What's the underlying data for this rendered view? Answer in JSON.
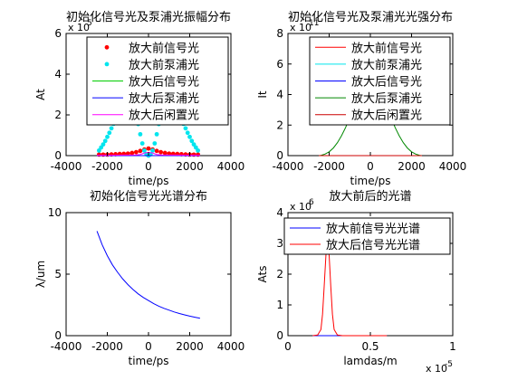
{
  "chart_data": [
    {
      "type": "scatter",
      "title": "初始化信号光及泵浦光振幅分布",
      "xlabel": "time/ps",
      "ylabel": "At",
      "exponent": "x 10",
      "exponent_power": "5",
      "xlim": [
        -4000,
        4000
      ],
      "ylim": [
        0,
        6
      ],
      "xticks": [
        -4000,
        -2000,
        0,
        2000,
        4000
      ],
      "yticks": [
        0,
        2,
        4,
        6
      ],
      "xtick_labels": [
        "-4000",
        "-2000",
        "0",
        "2000",
        "4000"
      ],
      "ytick_labels": [
        "0",
        "2",
        "4",
        "6"
      ],
      "legend_position": "top-right",
      "series": [
        {
          "name": "放大前信号光",
          "color": "#ff0000",
          "marker": "dot",
          "x": [
            -2400,
            -2200,
            -2000,
            -1800,
            -1600,
            -1400,
            -1200,
            -1000,
            -800,
            -600,
            -400,
            -200,
            0,
            200,
            400,
            600,
            800,
            1000,
            1200,
            1400,
            1600,
            1800,
            2000,
            2200,
            2400
          ],
          "y": [
            0.05,
            0.05,
            0.05,
            0.06,
            0.07,
            0.08,
            0.09,
            0.1,
            0.13,
            0.17,
            0.23,
            0.3,
            0.35,
            0.3,
            0.23,
            0.17,
            0.13,
            0.1,
            0.09,
            0.08,
            0.07,
            0.06,
            0.05,
            0.05,
            0.05
          ]
        },
        {
          "name": "放大前泵浦光",
          "color": "#00e5ee",
          "marker": "dot",
          "x": [
            -2400,
            -2300,
            -2200,
            -2100,
            -2000,
            -1900,
            -1800,
            -1700,
            -1600,
            -1500,
            -1400,
            -1300,
            -1200,
            -1100,
            -1000,
            -900,
            -800,
            -700,
            -600,
            -500,
            -400,
            -300,
            -200,
            -100,
            0,
            100,
            200,
            300,
            400,
            500,
            600,
            700,
            800,
            900,
            1000,
            1100,
            1200,
            1300,
            1400,
            1500,
            1600,
            1700,
            1800,
            1900,
            2000,
            2100,
            2200,
            2300,
            2400
          ],
          "y": [
            0.25,
            0.4,
            0.55,
            0.72,
            0.92,
            1.12,
            1.34,
            1.56,
            1.78,
            2.0,
            2.2,
            2.38,
            2.52,
            2.62,
            2.68,
            2.68,
            2.58,
            2.35,
            2.0,
            1.55,
            1.05,
            0.6,
            0.25,
            0.06,
            0.0,
            0.06,
            0.25,
            0.6,
            1.05,
            1.55,
            2.0,
            2.35,
            2.58,
            2.68,
            2.68,
            2.62,
            2.52,
            2.38,
            2.2,
            2.0,
            1.78,
            1.56,
            1.34,
            1.12,
            0.92,
            0.72,
            0.55,
            0.4,
            0.25
          ]
        },
        {
          "name": "放大后信号光",
          "color": "#00cc00",
          "marker": "line",
          "x": [
            -2500,
            2500
          ],
          "y": [
            0,
            0
          ]
        },
        {
          "name": "放大后泵浦光",
          "color": "#0000ff",
          "marker": "line",
          "x": [
            -2500,
            2500
          ],
          "y": [
            0,
            0
          ]
        },
        {
          "name": "放大后闲置光",
          "color": "#ff00ff",
          "marker": "line",
          "x": [
            -2500,
            -600,
            -400,
            -200,
            0,
            200,
            400,
            600,
            2500
          ],
          "y": [
            0.02,
            0.03,
            0.06,
            0.13,
            0.16,
            0.13,
            0.06,
            0.03,
            0.02
          ]
        }
      ]
    },
    {
      "type": "line",
      "title": "初始化信号光及泵浦光光强分布",
      "xlabel": "time/ps",
      "ylabel": "It",
      "exponent": "x 10",
      "exponent_power": "11",
      "xlim": [
        -4000,
        4000
      ],
      "ylim": [
        0,
        8
      ],
      "xticks": [
        -4000,
        -2000,
        0,
        2000,
        4000
      ],
      "yticks": [
        0,
        2,
        4,
        6,
        8
      ],
      "xtick_labels": [
        "-4000",
        "-2000",
        "0",
        "2000",
        "4000"
      ],
      "ytick_labels": [
        "0",
        "2",
        "4",
        "6",
        "8"
      ],
      "legend_position": "top-right",
      "series": [
        {
          "name": "放大前信号光",
          "color": "#ff0000",
          "x": [
            -2500,
            2500
          ],
          "y": [
            0,
            0
          ]
        },
        {
          "name": "放大前泵浦光",
          "color": "#00e5ee",
          "x": [
            -2500,
            2500
          ],
          "y": [
            0,
            0
          ]
        },
        {
          "name": "放大后信号光",
          "color": "#0000ff",
          "x": [
            -2500,
            2500
          ],
          "y": [
            0,
            0
          ]
        },
        {
          "name": "放大后泵浦光",
          "color": "#008800",
          "x": [
            -2500,
            -2400,
            -2200,
            -2000,
            -1800,
            -1600,
            -1400,
            -1200,
            -1000,
            -800,
            -600,
            -400,
            -200,
            0,
            200,
            400,
            600,
            800,
            1000,
            1200,
            1400,
            1600,
            1800,
            2000,
            2200,
            2400,
            2500
          ],
          "y": [
            0,
            0.02,
            0.1,
            0.25,
            0.5,
            0.85,
            1.3,
            1.85,
            2.5,
            3.25,
            4.1,
            5.2,
            6.4,
            7.5,
            6.4,
            5.2,
            4.1,
            3.25,
            2.5,
            1.85,
            1.3,
            0.85,
            0.5,
            0.25,
            0.1,
            0.02,
            0
          ]
        },
        {
          "name": "放大后闲置光",
          "color": "#cc0000",
          "x": [
            -2500,
            2500
          ],
          "y": [
            0,
            0
          ]
        }
      ]
    },
    {
      "type": "line",
      "title": "初始化信号光光谱分布",
      "xlabel": "time/ps",
      "ylabel": "λ/um",
      "xlim": [
        -4000,
        4000
      ],
      "ylim": [
        0,
        10
      ],
      "xticks": [
        -4000,
        -2000,
        0,
        2000,
        4000
      ],
      "yticks": [
        0,
        5,
        10
      ],
      "xtick_labels": [
        "-4000",
        "-2000",
        "0",
        "2000",
        "4000"
      ],
      "ytick_labels": [
        "0",
        "5",
        "10"
      ],
      "series": [
        {
          "color": "#0000ff",
          "x": [
            -2500,
            -2250,
            -2000,
            -1750,
            -1500,
            -1250,
            -1000,
            -750,
            -500,
            -250,
            0,
            250,
            500,
            750,
            1000,
            1250,
            1500,
            1750,
            2000,
            2250,
            2500
          ],
          "y": [
            8.5,
            7.4,
            6.5,
            5.75,
            5.15,
            4.6,
            4.15,
            3.75,
            3.4,
            3.1,
            2.85,
            2.6,
            2.4,
            2.22,
            2.07,
            1.93,
            1.8,
            1.69,
            1.59,
            1.5,
            1.42
          ]
        }
      ]
    },
    {
      "type": "line",
      "title": "放大前后的光谱",
      "xlabel": "lamdas/m",
      "ylabel": "Ats",
      "exponent": "x 10",
      "exponent_power": "6",
      "x_exponent": "x 10",
      "x_exponent_power": "-5",
      "xlim": [
        0,
        1
      ],
      "ylim": [
        0,
        4
      ],
      "xticks": [
        0,
        0.5,
        1
      ],
      "yticks": [
        0,
        1,
        2,
        3,
        4
      ],
      "xtick_labels": [
        "0",
        "0.5",
        "1"
      ],
      "ytick_labels": [
        "0",
        "1",
        "2",
        "3",
        "4"
      ],
      "legend_position": "top-right",
      "series": [
        {
          "name": "放大前信号光光谱",
          "color": "#0000ff",
          "x": [
            0.15,
            0.6
          ],
          "y": [
            0,
            0
          ]
        },
        {
          "name": "放大后信号光光谱",
          "color": "#ff0000",
          "x": [
            0.15,
            0.18,
            0.2,
            0.21,
            0.22,
            0.23,
            0.24,
            0.25,
            0.26,
            0.27,
            0.28,
            0.3,
            0.33,
            0.6
          ],
          "y": [
            0,
            0.02,
            0.2,
            0.7,
            1.6,
            2.6,
            3.2,
            2.6,
            1.6,
            0.7,
            0.2,
            0.02,
            0,
            0
          ]
        }
      ]
    }
  ]
}
